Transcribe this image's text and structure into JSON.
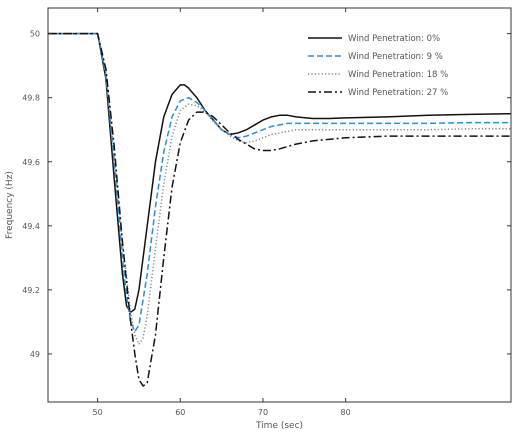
{
  "chart_data": {
    "type": "line",
    "xlabel": "Time (sec)",
    "ylabel": "Frequency (Hz)",
    "xlim": [
      44,
      100
    ],
    "ylim": [
      48.85,
      50.08
    ],
    "x_ticks": [
      50,
      60,
      70,
      80
    ],
    "x_tick_labels": [
      "50",
      "60",
      "70",
      "80"
    ],
    "y_ticks": [
      49.0,
      49.2,
      49.4,
      49.6,
      49.8,
      50.0
    ],
    "y_tick_labels": [
      "49",
      "49.2",
      "49.4",
      "49.6",
      "49.8",
      "50"
    ],
    "grid": false,
    "legend_position": "top-right",
    "series": [
      {
        "name": "Wind Penetration: 0%",
        "color": "#111111",
        "dash": "solid",
        "points": [
          [
            44,
            50.0
          ],
          [
            50,
            50.0
          ],
          [
            51,
            49.86
          ],
          [
            52,
            49.55
          ],
          [
            52.5,
            49.4
          ],
          [
            53,
            49.25
          ],
          [
            53.5,
            49.15
          ],
          [
            54,
            49.13
          ],
          [
            54.5,
            49.14
          ],
          [
            55,
            49.2
          ],
          [
            56,
            49.4
          ],
          [
            57,
            49.6
          ],
          [
            58,
            49.74
          ],
          [
            59,
            49.81
          ],
          [
            60,
            49.84
          ],
          [
            60.5,
            49.84
          ],
          [
            61,
            49.83
          ],
          [
            62,
            49.8
          ],
          [
            63,
            49.76
          ],
          [
            64,
            49.73
          ],
          [
            65,
            49.7
          ],
          [
            66,
            49.685
          ],
          [
            67,
            49.69
          ],
          [
            68,
            49.7
          ],
          [
            69,
            49.715
          ],
          [
            70,
            49.73
          ],
          [
            71,
            49.74
          ],
          [
            72,
            49.745
          ],
          [
            73,
            49.745
          ],
          [
            74,
            49.74
          ],
          [
            76,
            49.735
          ],
          [
            78,
            49.735
          ],
          [
            80,
            49.737
          ],
          [
            85,
            49.74
          ],
          [
            90,
            49.745
          ],
          [
            95,
            49.748
          ],
          [
            100,
            49.75
          ]
        ]
      },
      {
        "name": "Wind Penetration: 9 %",
        "color": "#2b8fd0",
        "dash": "dashed",
        "points": [
          [
            44,
            50.0
          ],
          [
            50,
            50.0
          ],
          [
            51,
            49.87
          ],
          [
            52,
            49.6
          ],
          [
            53,
            49.3
          ],
          [
            53.5,
            49.18
          ],
          [
            54,
            49.1
          ],
          [
            54.5,
            49.07
          ],
          [
            55,
            49.09
          ],
          [
            56,
            49.25
          ],
          [
            57,
            49.46
          ],
          [
            58,
            49.63
          ],
          [
            59,
            49.74
          ],
          [
            60,
            49.79
          ],
          [
            61,
            49.8
          ],
          [
            62,
            49.785
          ],
          [
            63,
            49.76
          ],
          [
            64,
            49.73
          ],
          [
            65,
            49.7
          ],
          [
            66,
            49.685
          ],
          [
            67,
            49.675
          ],
          [
            68,
            49.68
          ],
          [
            69,
            49.69
          ],
          [
            70,
            49.7
          ],
          [
            71,
            49.71
          ],
          [
            72,
            49.715
          ],
          [
            73,
            49.72
          ],
          [
            74,
            49.72
          ],
          [
            76,
            49.72
          ],
          [
            80,
            49.72
          ],
          [
            85,
            49.72
          ],
          [
            90,
            49.72
          ],
          [
            95,
            49.722
          ],
          [
            100,
            49.722
          ]
        ]
      },
      {
        "name": "Wind Penetration: 18 %",
        "color": "#7a8896",
        "dash": "dotted",
        "points": [
          [
            44,
            50.0
          ],
          [
            50,
            50.0
          ],
          [
            51,
            49.88
          ],
          [
            52,
            49.62
          ],
          [
            53,
            49.35
          ],
          [
            54,
            49.13
          ],
          [
            54.5,
            49.06
          ],
          [
            55,
            49.03
          ],
          [
            55.5,
            49.05
          ],
          [
            56,
            49.12
          ],
          [
            57,
            49.33
          ],
          [
            58,
            49.53
          ],
          [
            59,
            49.68
          ],
          [
            60,
            49.76
          ],
          [
            61,
            49.78
          ],
          [
            62,
            49.775
          ],
          [
            63,
            49.755
          ],
          [
            64,
            49.725
          ],
          [
            65,
            49.7
          ],
          [
            66,
            49.68
          ],
          [
            67,
            49.665
          ],
          [
            68,
            49.66
          ],
          [
            69,
            49.665
          ],
          [
            70,
            49.675
          ],
          [
            71,
            49.685
          ],
          [
            72,
            49.69
          ],
          [
            73,
            49.695
          ],
          [
            74,
            49.7
          ],
          [
            76,
            49.7
          ],
          [
            80,
            49.7
          ],
          [
            85,
            49.7
          ],
          [
            90,
            49.7
          ],
          [
            95,
            49.703
          ],
          [
            100,
            49.703
          ]
        ]
      },
      {
        "name": "Wind Penetration: 27 %",
        "color": "#111111",
        "dash": "dashdot",
        "points": [
          [
            44,
            50.0
          ],
          [
            50,
            50.0
          ],
          [
            51,
            49.89
          ],
          [
            52,
            49.65
          ],
          [
            53,
            49.35
          ],
          [
            54,
            49.1
          ],
          [
            54.5,
            49.0
          ],
          [
            55,
            48.92
          ],
          [
            55.5,
            48.9
          ],
          [
            56,
            48.91
          ],
          [
            57,
            49.06
          ],
          [
            58,
            49.3
          ],
          [
            59,
            49.52
          ],
          [
            60,
            49.66
          ],
          [
            61,
            49.73
          ],
          [
            62,
            49.755
          ],
          [
            63,
            49.755
          ],
          [
            64,
            49.74
          ],
          [
            65,
            49.715
          ],
          [
            66,
            49.69
          ],
          [
            67,
            49.67
          ],
          [
            68,
            49.655
          ],
          [
            69,
            49.64
          ],
          [
            70,
            49.635
          ],
          [
            71,
            49.635
          ],
          [
            72,
            49.64
          ],
          [
            73,
            49.648
          ],
          [
            74,
            49.655
          ],
          [
            76,
            49.665
          ],
          [
            78,
            49.67
          ],
          [
            80,
            49.675
          ],
          [
            85,
            49.68
          ],
          [
            90,
            49.68
          ],
          [
            95,
            49.68
          ],
          [
            100,
            49.68
          ]
        ]
      }
    ]
  }
}
